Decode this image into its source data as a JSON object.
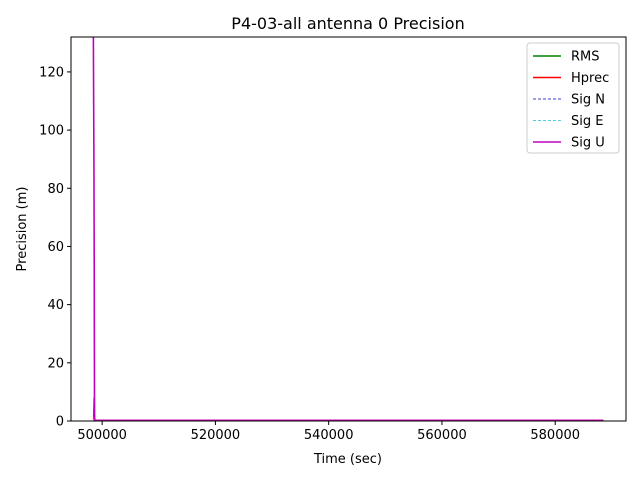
{
  "chart_data": {
    "type": "line",
    "title": "P4-03-all antenna 0 Precision",
    "xlabel": "Time (sec)",
    "ylabel": "Precision (m)",
    "xlim": [
      494500,
      592500
    ],
    "ylim": [
      0,
      132
    ],
    "xticks": [
      500000,
      520000,
      540000,
      560000,
      580000
    ],
    "xtick_labels": [
      "500000",
      "520000",
      "540000",
      "560000",
      "580000"
    ],
    "yticks": [
      0,
      20,
      40,
      60,
      80,
      100,
      120
    ],
    "ytick_labels": [
      "0",
      "20",
      "40",
      "60",
      "80",
      "100",
      "120"
    ],
    "grid": false,
    "legend_position": "top-right",
    "series": [
      {
        "name": "RMS",
        "color": "#008000",
        "style": "solid",
        "x": [
          498500,
          498700,
          588500
        ],
        "y": [
          0,
          0.1,
          0.1
        ]
      },
      {
        "name": "Hprec",
        "color": "#ff0000",
        "style": "solid",
        "x": [
          498500,
          498600,
          498650,
          588500
        ],
        "y": [
          0.5,
          8,
          0.2,
          0.2
        ]
      },
      {
        "name": "Sig N",
        "color": "#0000bb",
        "style": "dashed",
        "x": [
          498500,
          498600,
          498650,
          588500
        ],
        "y": [
          0.5,
          5,
          0.1,
          0.1
        ]
      },
      {
        "name": "Sig E",
        "color": "#17becf",
        "style": "dashed",
        "x": [
          498500,
          498600,
          498650,
          588500
        ],
        "y": [
          0.5,
          6,
          0.1,
          0.1
        ]
      },
      {
        "name": "Sig U",
        "color": "#bf00bf",
        "style": "solid",
        "x": [
          498450,
          498550,
          498600,
          498650,
          498700,
          588500
        ],
        "y": [
          132,
          88,
          55,
          2,
          0.2,
          0.2
        ]
      }
    ]
  }
}
